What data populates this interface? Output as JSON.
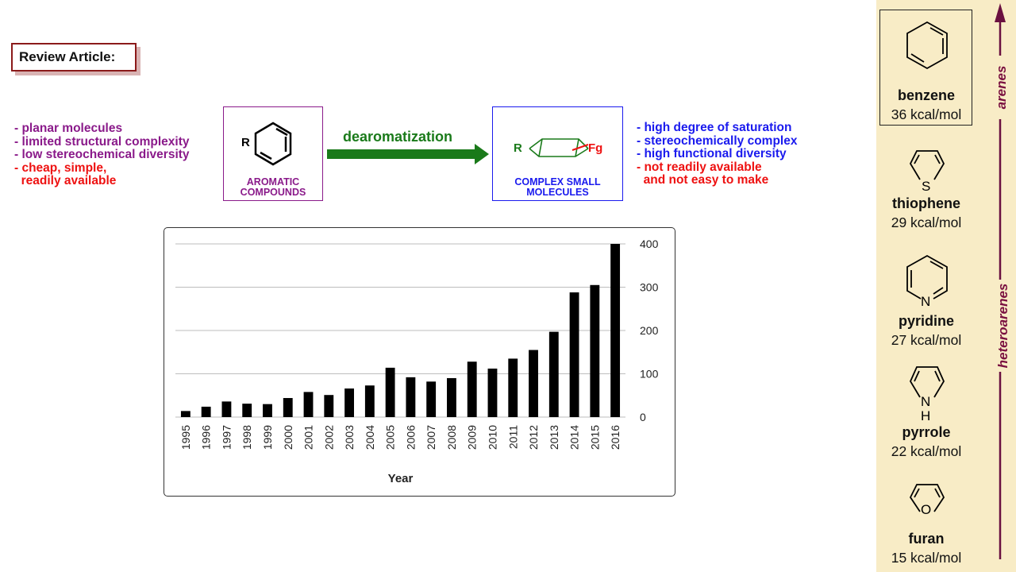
{
  "review_tag": "Review Article:",
  "left_bullets": [
    {
      "text": "- planar molecules",
      "color": "purple"
    },
    {
      "text": "- limited structural complexity",
      "color": "purple"
    },
    {
      "text": "- low stereochemical diversity",
      "color": "purple"
    },
    {
      "text": "- cheap, simple,",
      "color": "red"
    },
    {
      "text": "  readily available",
      "color": "red"
    }
  ],
  "aromatic_card": {
    "r_label": "R",
    "line1": "AROMATIC",
    "line2": "COMPOUNDS"
  },
  "arrow_label": "dearomatization",
  "complex_card": {
    "r_label": "R",
    "fg_label": "Fg",
    "line1": "COMPLEX SMALL",
    "line2": "MOLECULES"
  },
  "right_bullets": [
    {
      "text": "- high degree of saturation",
      "color": "blue"
    },
    {
      "text": "- stereochemically complex",
      "color": "blue"
    },
    {
      "text": "- high functional diversity",
      "color": "blue"
    },
    {
      "text": "- not readily available",
      "color": "red"
    },
    {
      "text": "  and not easy to make",
      "color": "red"
    }
  ],
  "chart_data": {
    "type": "bar",
    "xlabel": "Year",
    "ylabel": "",
    "ylim": [
      0,
      400
    ],
    "yticks": [
      0,
      100,
      200,
      300,
      400
    ],
    "y_axis_side": "right",
    "grid": true,
    "categories": [
      "1995",
      "1996",
      "1997",
      "1998",
      "1999",
      "2000",
      "2001",
      "2002",
      "2003",
      "2004",
      "2005",
      "2006",
      "2007",
      "2008",
      "2009",
      "2010",
      "2011",
      "2012",
      "2013",
      "2014",
      "2015",
      "2016"
    ],
    "values": [
      14,
      24,
      36,
      31,
      30,
      44,
      58,
      51,
      66,
      73,
      114,
      92,
      82,
      90,
      128,
      112,
      135,
      155,
      197,
      288,
      305,
      400
    ],
    "bar_color": "#000000"
  },
  "side_panel": {
    "top_label": "arenes",
    "bottom_label": "heteroarenes",
    "molecules": [
      {
        "name": "benzene",
        "energy": "36 kcal/mol"
      },
      {
        "name": "thiophene",
        "energy": "29 kcal/mol",
        "heteroatom": "S"
      },
      {
        "name": "pyridine",
        "energy": "27 kcal/mol",
        "heteroatom": "N"
      },
      {
        "name": "pyrrole",
        "energy": "22 kcal/mol",
        "heteroatom": "N",
        "heteroatom2": "H"
      },
      {
        "name": "furan",
        "energy": "15 kcal/mol",
        "heteroatom": "O"
      }
    ]
  }
}
